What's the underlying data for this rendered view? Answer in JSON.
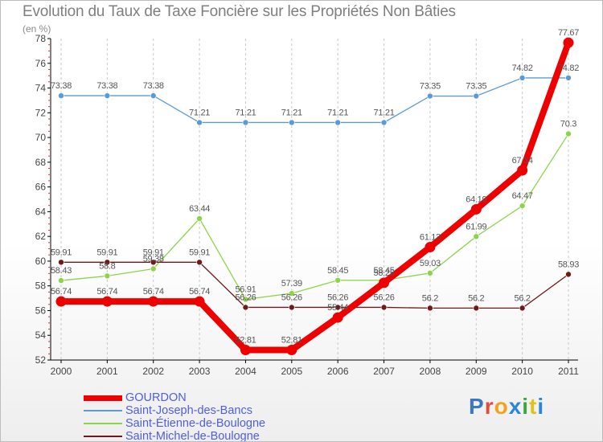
{
  "header": {
    "title": "Evolution du Taux de Taxe Foncière sur les Propriétés Non Bâties",
    "unit": "(en %)"
  },
  "brand": {
    "text": "Proxiti",
    "colors": [
      "#3a78c4",
      "#e04d3a",
      "#f3a21d",
      "#2b86d6",
      "#3aa83a",
      "#e0c21d",
      "#2b86d6"
    ]
  },
  "colors": {
    "background": "#ffffff",
    "grid": "#c8c8c8",
    "axis": "#000000",
    "tick_text": "#444444",
    "legend_text": "#4f5fe0",
    "title_text": "#7f7f7f"
  },
  "chart_data": {
    "type": "line",
    "title": "Evolution du Taux de Taxe Foncière sur les Propriétés Non Bâties",
    "xlabel": "",
    "ylabel": "(en %)",
    "ylim": [
      52,
      78
    ],
    "yticks": [
      "52",
      "54",
      "56",
      "58",
      "60",
      "62",
      "64",
      "66",
      "68",
      "70",
      "72",
      "74",
      "76",
      "78"
    ],
    "grid": "vertical",
    "categories": [
      "2000",
      "2001",
      "2002",
      "2003",
      "2004",
      "2005",
      "2006",
      "2007",
      "2008",
      "2009",
      "2010",
      "2011"
    ],
    "series": [
      {
        "name": "GOURDON",
        "color": "#ee0000",
        "values": [
          56.74,
          56.74,
          56.74,
          56.74,
          52.81,
          52.81,
          55.44,
          58.25,
          61.13,
          64.19,
          67.34,
          77.67
        ],
        "labels": [
          "56.74",
          "56.74",
          "56.74",
          "56.74",
          "52.81",
          "52.81",
          "55.44",
          "58.25",
          "61.13",
          "64.19",
          "67.34",
          "77.67"
        ]
      },
      {
        "name": "Saint-Joseph-des-Bancs",
        "color": "#5b9bd5",
        "values": [
          73.38,
          73.38,
          73.38,
          71.21,
          71.21,
          71.21,
          71.21,
          71.21,
          73.35,
          73.35,
          74.82,
          74.82
        ],
        "labels": [
          "73.38",
          "73.38",
          "73.38",
          "71.21",
          "71.21",
          "71.21",
          "71.21",
          "71.21",
          "73.35",
          "73.35",
          "74.82",
          "74.82"
        ]
      },
      {
        "name": "Saint-Étienne-de-Boulogne",
        "color": "#8ed44b",
        "values": [
          58.43,
          58.8,
          59.38,
          63.44,
          56.91,
          57.39,
          58.45,
          58.45,
          59.03,
          61.99,
          64.47,
          70.3
        ],
        "labels": [
          "58.43",
          "58.8",
          "59.38",
          "63.44",
          "56.91",
          "57.39",
          "58.45",
          "58.45",
          "59.03",
          "61.99",
          "64.47",
          "70.3"
        ]
      },
      {
        "name": "Saint-Michel-de-Boulogne",
        "color": "#6e1a1a",
        "values": [
          59.91,
          59.91,
          59.91,
          59.91,
          56.26,
          56.26,
          56.26,
          56.26,
          56.2,
          56.2,
          56.2,
          58.93
        ],
        "labels": [
          "59.91",
          "59.91",
          "59.91",
          "59.91",
          "56.26",
          "56.26",
          "56.26",
          "56.26",
          "56.2",
          "56.2",
          "56.2",
          "58.93"
        ]
      }
    ]
  }
}
